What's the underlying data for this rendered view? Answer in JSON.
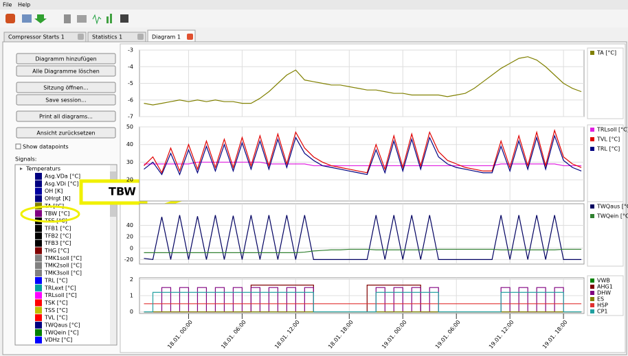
{
  "menu": [
    "File",
    "Help"
  ],
  "tabs": [
    "Compressor Starts 1",
    "Statistics 1",
    "Diagram 1"
  ],
  "left_panel": {
    "buttons": [
      "Diagramm hinzufügen",
      "Alle Diagramme löschen",
      "Sitzung öffnen...",
      "Save session...",
      "Print all diagrams...",
      "Ansicht zurücksetzen"
    ],
    "checkbox": "Show datapoints",
    "signals_label": "Signals:",
    "tree_group": "Temperaturs",
    "items": [
      {
        "name": "Asg.VDa [°C]",
        "color": "#000080"
      },
      {
        "name": "Asg.VDi [°C]",
        "color": "#000080"
      },
      {
        "name": "OH [K]",
        "color": "#0000a0"
      },
      {
        "name": "OHrgt [K]",
        "color": "#000080"
      },
      {
        "name": "TA [°C]",
        "color": "#808000"
      },
      {
        "name": "TBW [°C]",
        "color": "#800080"
      },
      {
        "name": "TFE [°C]",
        "color": "#000000"
      },
      {
        "name": "TFB1 [°C]",
        "color": "#000000"
      },
      {
        "name": "TFB2 [°C]",
        "color": "#000000"
      },
      {
        "name": "TFB3 [°C]",
        "color": "#000000"
      },
      {
        "name": "THG [°C]",
        "color": "#800000"
      },
      {
        "name": "TMK1soll [°C]",
        "color": "#808080"
      },
      {
        "name": "TMK2soll [°C]",
        "color": "#808080"
      },
      {
        "name": "TMK3soll [°C]",
        "color": "#808080"
      },
      {
        "name": "TRL [°C]",
        "color": "#0000ff"
      },
      {
        "name": "TRLext [°C]",
        "color": "#00a0a0"
      },
      {
        "name": "TRLsoll [°C]",
        "color": "#ff00ff"
      },
      {
        "name": "TSK [°C]",
        "color": "#ff0000"
      },
      {
        "name": "TSS [°C]",
        "color": "#c0c000"
      },
      {
        "name": "TVL [°C]",
        "color": "#ff0000"
      },
      {
        "name": "TWQaus [°C]",
        "color": "#000080"
      },
      {
        "name": "TWQein [°C]",
        "color": "#008000"
      },
      {
        "name": "VDHz [°C]",
        "color": "#0000ff"
      }
    ]
  },
  "annotation": "TBW",
  "x_axis": {
    "xlim": [
      -5.5,
      44.3
    ],
    "xticks": [
      {
        "value": 0,
        "label": "18.01. 00:00"
      },
      {
        "value": 6,
        "label": "18.01. 06:00"
      },
      {
        "value": 12,
        "label": "18.01. 12:00"
      },
      {
        "value": 18,
        "label": "18.01. 18:00"
      },
      {
        "value": 24,
        "label": "19.01. 00:00"
      },
      {
        "value": 30,
        "label": "19.01. 06:00"
      },
      {
        "value": 36,
        "label": "19.01. 12:00"
      },
      {
        "value": 42,
        "label": "19.01. 18:00"
      }
    ],
    "x": [
      -5,
      -4,
      -3,
      -2,
      -1,
      0,
      1,
      2,
      3,
      4,
      5,
      6,
      7,
      8,
      9,
      10,
      11,
      12,
      13,
      14,
      15,
      16,
      17,
      18,
      19,
      20,
      21,
      22,
      23,
      24,
      25,
      26,
      27,
      28,
      29,
      30,
      31,
      32,
      33,
      34,
      35,
      36,
      37,
      38,
      39,
      40,
      41,
      42,
      43,
      44
    ]
  },
  "charts": [
    {
      "ylim": [
        -7,
        -3
      ],
      "yticks": [
        -7,
        -6,
        -5,
        -4,
        -3
      ],
      "step": false,
      "series": [
        {
          "name": "TA [°C]",
          "color": "#808000",
          "values": [
            -6.2,
            -6.3,
            -6.2,
            -6.1,
            -6.0,
            -6.1,
            -6.0,
            -6.1,
            -6.0,
            -6.1,
            -6.1,
            -6.2,
            -6.2,
            -5.9,
            -5.5,
            -5.0,
            -4.5,
            -4.2,
            -4.8,
            -4.9,
            -5.0,
            -5.1,
            -5.1,
            -5.2,
            -5.3,
            -5.4,
            -5.4,
            -5.5,
            -5.6,
            -5.6,
            -5.7,
            -5.7,
            -5.7,
            -5.7,
            -5.8,
            -5.7,
            -5.6,
            -5.3,
            -4.9,
            -4.5,
            -4.1,
            -3.8,
            -3.5,
            -3.4,
            -3.6,
            -4.0,
            -4.5,
            -5.0,
            -5.3,
            -5.5
          ]
        }
      ]
    },
    {
      "ylim": [
        8,
        50
      ],
      "yticks": [
        20,
        30,
        40,
        50
      ],
      "step": false,
      "series": [
        {
          "name": "TRLsoll [°C]",
          "color": "#e020e0",
          "values": [
            29,
            29,
            29,
            29,
            29,
            29,
            30,
            30,
            30,
            30,
            30,
            30,
            30,
            30,
            29,
            29,
            29,
            29,
            29,
            28,
            28,
            28,
            28,
            28,
            28,
            28,
            28,
            28,
            28,
            28,
            28,
            28,
            28,
            28,
            28,
            28,
            28,
            28,
            28,
            28,
            29,
            29,
            29,
            29,
            29,
            29,
            29,
            28,
            28,
            28
          ]
        },
        {
          "name": "TVL [°C]",
          "color": "#e00000",
          "values": [
            28,
            33,
            24,
            38,
            25,
            40,
            26,
            42,
            27,
            43,
            27,
            44,
            28,
            45,
            28,
            46,
            29,
            47,
            38,
            33,
            30,
            28,
            27,
            26,
            25,
            24,
            40,
            26,
            45,
            27,
            46,
            28,
            47,
            36,
            31,
            29,
            27,
            26,
            25,
            25,
            42,
            27,
            45,
            28,
            47,
            28,
            48,
            33,
            29,
            27
          ]
        },
        {
          "name": "TRL [°C]",
          "color": "#000080",
          "values": [
            26,
            30,
            23,
            35,
            23,
            37,
            24,
            39,
            25,
            40,
            25,
            41,
            26,
            42,
            26,
            43,
            27,
            44,
            35,
            31,
            28,
            27,
            26,
            25,
            24,
            23,
            37,
            24,
            42,
            25,
            43,
            26,
            44,
            33,
            29,
            27,
            26,
            25,
            24,
            24,
            39,
            25,
            42,
            26,
            44,
            26,
            45,
            31,
            27,
            25
          ]
        }
      ]
    },
    {
      "ylim": [
        -28,
        78
      ],
      "yticks": [
        -20,
        0,
        20,
        40
      ],
      "step": false,
      "series": [
        {
          "name": "TWQaus [°C]",
          "color": "#000060",
          "values": [
            -18,
            -20,
            55,
            -20,
            58,
            -20,
            56,
            -20,
            58,
            -20,
            57,
            -20,
            58,
            -20,
            58,
            -20,
            58,
            -20,
            58,
            -20,
            -20,
            -20,
            -20,
            -20,
            -20,
            -20,
            58,
            -20,
            58,
            -20,
            58,
            -20,
            58,
            -20,
            -20,
            -20,
            -20,
            -20,
            -20,
            -20,
            58,
            -20,
            58,
            -20,
            58,
            -20,
            58,
            -20,
            -20,
            -20
          ]
        },
        {
          "name": "TWQein [°C]",
          "color": "#308030",
          "values": [
            -8,
            -8,
            -8,
            -8,
            -8,
            -8,
            -8,
            -8,
            -8,
            -8,
            -8,
            -8,
            -8,
            -8,
            -8,
            -8,
            -8,
            -8,
            -7,
            -5,
            -4,
            -3,
            -3,
            -2,
            -2,
            -2,
            -3,
            -3,
            -3,
            -3,
            -3,
            -3,
            -3,
            -2,
            -2,
            -2,
            -2,
            -2,
            -2,
            -2,
            -3,
            -3,
            -3,
            -3,
            -3,
            -3,
            -3,
            -2,
            -2,
            -2
          ]
        }
      ]
    },
    {
      "ylim": [
        -0.1,
        2.1
      ],
      "yticks": [
        0,
        1,
        2
      ],
      "step": true,
      "series": [
        {
          "name": "VWB",
          "color": "#008000",
          "values": [
            0,
            0,
            0,
            0,
            0,
            0,
            0,
            0,
            0,
            0,
            0,
            0,
            0,
            0,
            0,
            0,
            0,
            0,
            0,
            0,
            0,
            0,
            0,
            0,
            0,
            0,
            0,
            0,
            0,
            0,
            0,
            0,
            0,
            0,
            0,
            0,
            0,
            0,
            0,
            0,
            0,
            0,
            0,
            0,
            0,
            0,
            0,
            0,
            0,
            0
          ]
        },
        {
          "name": "AHG1",
          "color": "#800000",
          "values": [
            0,
            0,
            0,
            0,
            0,
            0,
            0,
            0,
            0,
            0,
            0,
            0,
            1.65,
            1.65,
            1.65,
            1.65,
            1.65,
            1.65,
            1.65,
            0,
            0,
            0,
            0,
            0,
            0,
            1.65,
            1.65,
            1.65,
            1.65,
            1.65,
            1.65,
            0,
            0,
            0,
            0,
            0,
            0,
            0,
            0,
            0,
            0,
            0,
            0,
            0,
            0,
            0,
            0,
            0,
            0,
            0
          ]
        },
        {
          "name": "DHW",
          "color": "#800080",
          "values": [
            0,
            0,
            1.5,
            0,
            1.5,
            0,
            1.5,
            0,
            1.5,
            0,
            1.5,
            0,
            1.5,
            0,
            1.5,
            0,
            1.5,
            0,
            1.5,
            0,
            0,
            0,
            0,
            0,
            0,
            0,
            1.5,
            0,
            1.5,
            0,
            1.5,
            0,
            1.5,
            0,
            0,
            0,
            0,
            0,
            0,
            0,
            1.5,
            0,
            1.5,
            0,
            1.5,
            0,
            1.5,
            0,
            0,
            0
          ]
        },
        {
          "name": "ES",
          "color": "#808000",
          "values": [
            0,
            0,
            0,
            0,
            0,
            0,
            0,
            0,
            0,
            0,
            0,
            0,
            0,
            0,
            0,
            0,
            0,
            0,
            0,
            0,
            0,
            0,
            0,
            0,
            0,
            0,
            0,
            0,
            0,
            0,
            0,
            0,
            0,
            0,
            0,
            0,
            0,
            0,
            0,
            0,
            0,
            0,
            0,
            0,
            0,
            0,
            0,
            0,
            0,
            0
          ]
        },
        {
          "name": "HSP",
          "color": "#e03030",
          "values": [
            0.5,
            0.5,
            0.5,
            0.5,
            0.5,
            0.5,
            0.5,
            0.5,
            0.5,
            0.5,
            0.5,
            0.5,
            0.5,
            0.5,
            0.5,
            0.5,
            0.5,
            0.5,
            0.5,
            0.5,
            0.5,
            0.5,
            0.5,
            0.5,
            0.5,
            0.5,
            0.5,
            0.5,
            0.5,
            0.5,
            0.5,
            0.5,
            0.5,
            0.5,
            0.5,
            0.5,
            0.5,
            0.5,
            0.5,
            0.5,
            0.5,
            0.5,
            0.5,
            0.5,
            0.5,
            0.5,
            0.5,
            0.5,
            0.5,
            0.5
          ]
        },
        {
          "name": "CP1",
          "color": "#20a0a0",
          "values": [
            0,
            1.2,
            1.2,
            1.2,
            1.2,
            1.2,
            1.2,
            1.2,
            1.2,
            1.2,
            1.2,
            1.2,
            1.2,
            1.2,
            1.2,
            1.2,
            1.2,
            1.2,
            1.2,
            0,
            0,
            0,
            0,
            0,
            0,
            0,
            1.2,
            1.2,
            1.2,
            1.2,
            1.2,
            1.2,
            1.2,
            0,
            0,
            0,
            0,
            0,
            0,
            0,
            1.2,
            1.2,
            1.2,
            1.2,
            1.2,
            1.2,
            1.2,
            0,
            0,
            0
          ]
        }
      ]
    }
  ]
}
